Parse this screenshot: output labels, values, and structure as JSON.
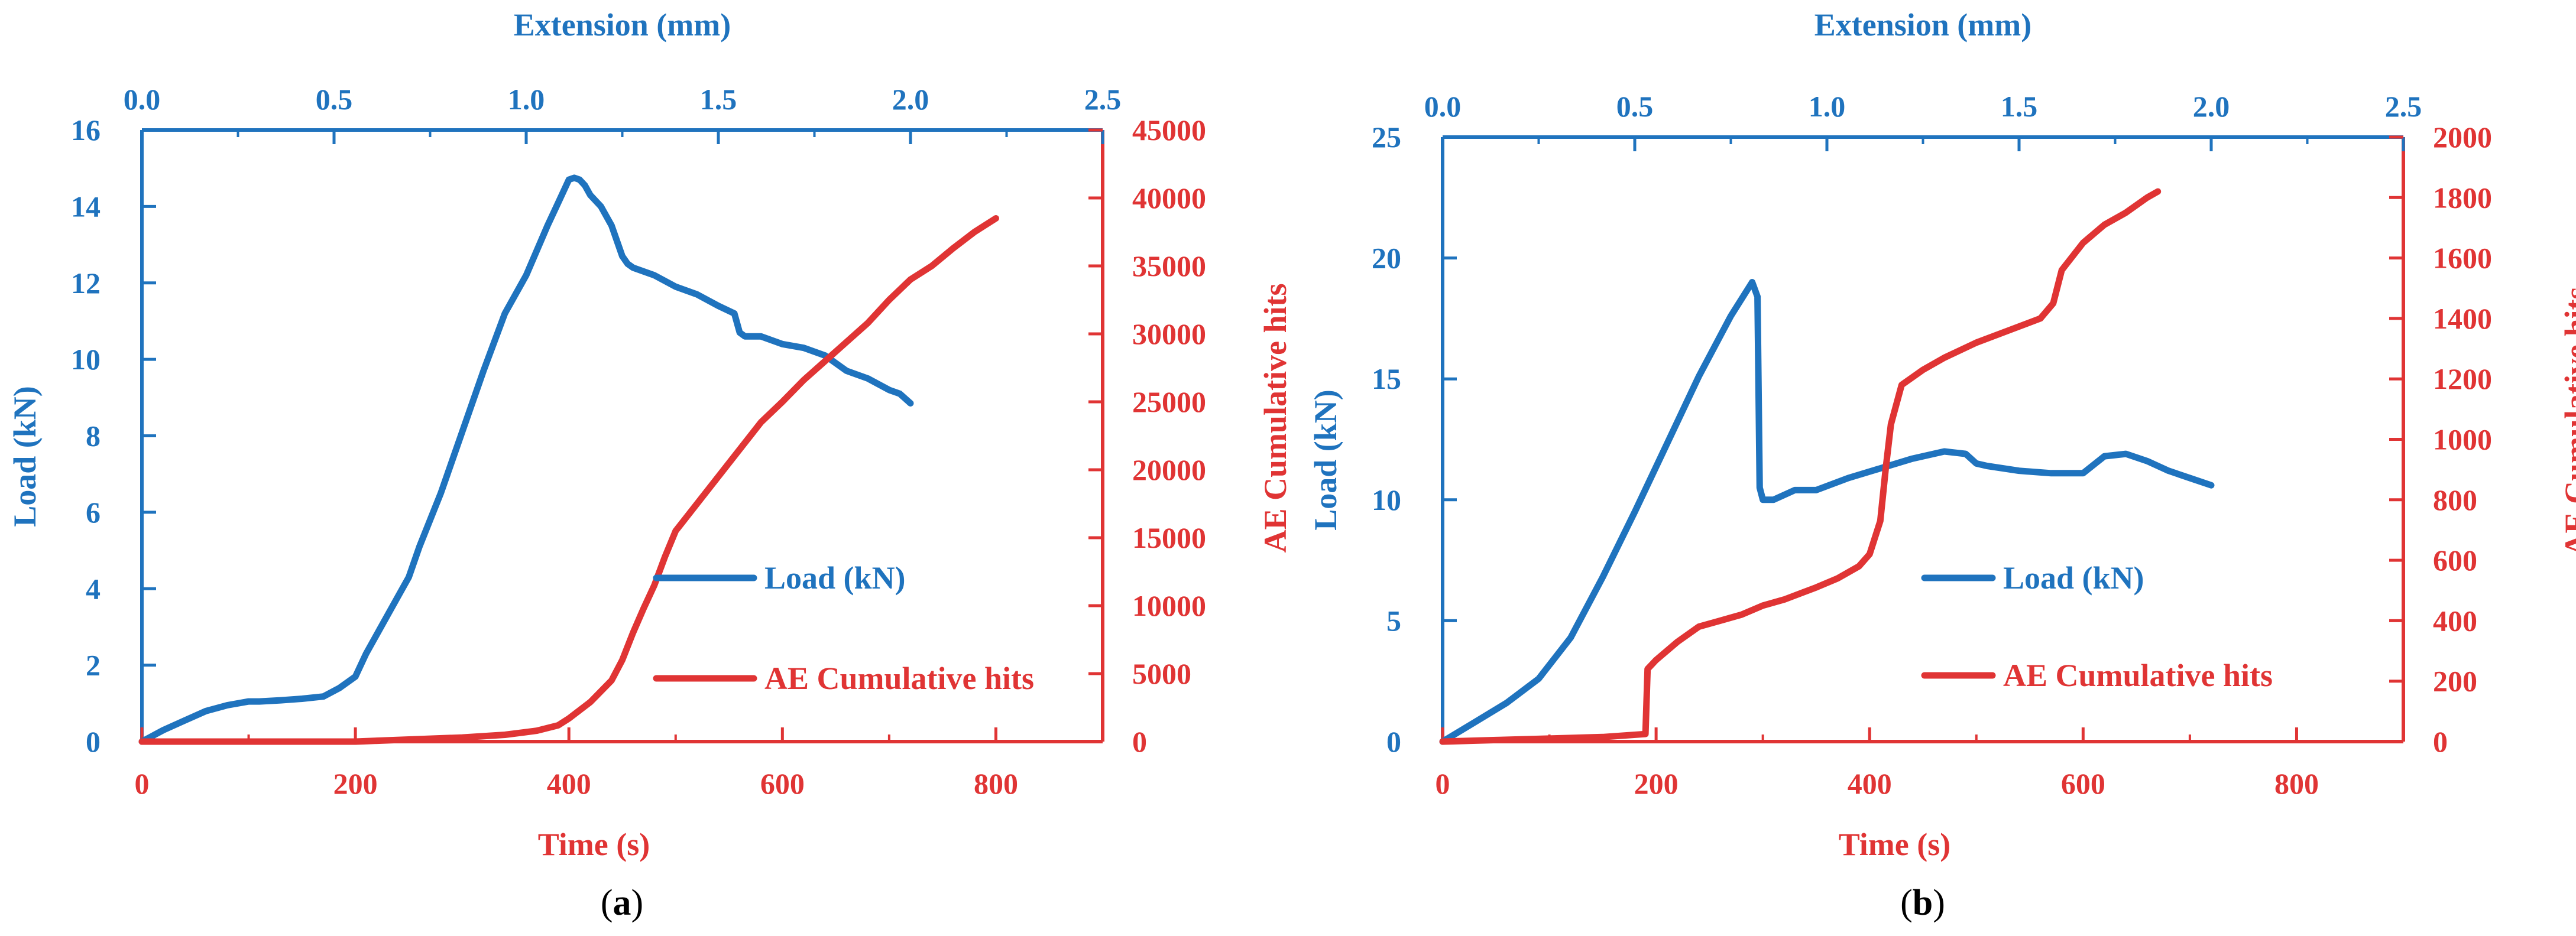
{
  "colors": {
    "load": "#1f73be",
    "ae": "#e03434"
  },
  "charts": [
    {
      "panel_label": "(a)",
      "panel_letter": "a",
      "top_axis_title": "Extension (mm)",
      "bottom_axis_title": "Time (s)",
      "left_axis_title": "Load (kN)",
      "right_axis_title": "AE Cumulative hits",
      "top_ticks": [
        "0.0",
        "0.5",
        "1.0",
        "1.5",
        "2.0",
        "2.5"
      ],
      "bottom_ticks": [
        "0",
        "200",
        "400",
        "600",
        "800"
      ],
      "left_ticks": [
        "0",
        "2",
        "4",
        "6",
        "8",
        "10",
        "12",
        "14",
        "16"
      ],
      "right_ticks": [
        "0",
        "5000",
        "10000",
        "15000",
        "20000",
        "25000",
        "30000",
        "35000",
        "40000",
        "45000"
      ],
      "legend": [
        "Load (kN)",
        "AE Cumulative hits"
      ]
    },
    {
      "panel_label": "(b)",
      "panel_letter": "b",
      "top_axis_title": "Extension (mm)",
      "bottom_axis_title": "Time (s)",
      "left_axis_title": "Load (kN)",
      "right_axis_title": "AE Cumulative hits",
      "top_ticks": [
        "0.0",
        "0.5",
        "1.0",
        "1.5",
        "2.0",
        "2.5"
      ],
      "bottom_ticks": [
        "0",
        "200",
        "400",
        "600",
        "800"
      ],
      "left_ticks": [
        "0",
        "5",
        "10",
        "15",
        "20",
        "25"
      ],
      "right_ticks": [
        "0",
        "200",
        "400",
        "600",
        "800",
        "1000",
        "1200",
        "1400",
        "1600",
        "1800",
        "2000"
      ],
      "legend": [
        "Load (kN)",
        "AE Cumulative hits"
      ]
    }
  ],
  "chart_data": [
    {
      "type": "line",
      "title": "(a)",
      "xlabel": "Time (s)",
      "x2label": "Extension (mm)",
      "ylabel": "Load (kN)",
      "y2label": "AE Cumulative hits",
      "xlim": [
        0,
        900
      ],
      "x2lim": [
        0,
        2.5
      ],
      "ylim": [
        0,
        16
      ],
      "y2lim": [
        0,
        45000
      ],
      "series": [
        {
          "name": "Load (kN)",
          "axis": "left",
          "x": [
            0,
            20,
            40,
            60,
            80,
            100,
            110,
            130,
            150,
            170,
            185,
            200,
            210,
            220,
            240,
            250,
            260,
            280,
            300,
            320,
            340,
            360,
            380,
            390,
            400,
            405,
            410,
            415,
            420,
            430,
            440,
            450,
            455,
            460,
            480,
            500,
            520,
            540,
            555,
            560,
            565,
            580,
            600,
            620,
            640,
            660,
            680,
            700,
            710,
            720
          ],
          "y": [
            0,
            0.3,
            0.55,
            0.8,
            0.95,
            1.05,
            1.05,
            1.08,
            1.12,
            1.18,
            1.4,
            1.7,
            2.3,
            2.8,
            3.8,
            4.3,
            5.1,
            6.5,
            8.1,
            9.7,
            11.2,
            12.2,
            13.5,
            14.1,
            14.7,
            14.75,
            14.7,
            14.55,
            14.3,
            14.0,
            13.5,
            12.7,
            12.5,
            12.4,
            12.2,
            11.9,
            11.7,
            11.4,
            11.2,
            10.7,
            10.6,
            10.6,
            10.4,
            10.3,
            10.1,
            9.7,
            9.5,
            9.2,
            9.1,
            8.85
          ]
        },
        {
          "name": "AE Cumulative hits",
          "axis": "right",
          "x": [
            0,
            100,
            200,
            250,
            300,
            340,
            370,
            390,
            400,
            420,
            440,
            450,
            460,
            470,
            480,
            490,
            500,
            520,
            540,
            560,
            580,
            600,
            620,
            640,
            660,
            680,
            700,
            720,
            740,
            760,
            780,
            800
          ],
          "y": [
            0,
            0,
            0,
            150,
            300,
            500,
            800,
            1200,
            1700,
            2900,
            4500,
            6000,
            8000,
            9800,
            11500,
            13600,
            15500,
            17500,
            19500,
            21500,
            23500,
            25000,
            26600,
            28000,
            29400,
            30800,
            32500,
            34000,
            35000,
            36300,
            37500,
            38500
          ]
        }
      ],
      "legend": [
        "Load (kN)",
        "AE Cumulative hits"
      ]
    },
    {
      "type": "line",
      "title": "(b)",
      "xlabel": "Time (s)",
      "x2label": "Extension (mm)",
      "ylabel": "Load (kN)",
      "y2label": "AE Cumulative hits",
      "xlim": [
        0,
        900
      ],
      "x2lim": [
        0,
        2.5
      ],
      "ylim": [
        0,
        25
      ],
      "y2lim": [
        0,
        2000
      ],
      "series": [
        {
          "name": "Load (kN)",
          "axis": "left",
          "x": [
            0,
            30,
            60,
            90,
            120,
            150,
            180,
            210,
            240,
            270,
            290,
            295,
            297,
            300,
            310,
            330,
            350,
            380,
            410,
            440,
            470,
            490,
            500,
            510,
            540,
            570,
            600,
            620,
            640,
            660,
            680,
            700,
            720
          ],
          "y": [
            0,
            0.8,
            1.6,
            2.6,
            4.3,
            6.8,
            9.5,
            12.3,
            15.1,
            17.6,
            19.0,
            18.4,
            10.5,
            10.0,
            10.0,
            10.4,
            10.4,
            10.9,
            11.3,
            11.7,
            12.0,
            11.9,
            11.5,
            11.4,
            11.2,
            11.1,
            11.1,
            11.8,
            11.9,
            11.6,
            11.2,
            10.9,
            10.6
          ]
        },
        {
          "name": "AE Cumulative hits",
          "axis": "right",
          "x": [
            0,
            50,
            100,
            150,
            190,
            192,
            200,
            220,
            240,
            260,
            280,
            300,
            320,
            350,
            370,
            390,
            400,
            410,
            415,
            420,
            430,
            450,
            470,
            500,
            530,
            560,
            572,
            580,
            600,
            620,
            640,
            660,
            670
          ],
          "y": [
            0,
            5,
            10,
            15,
            25,
            240,
            270,
            330,
            380,
            400,
            420,
            450,
            470,
            510,
            540,
            580,
            620,
            730,
            900,
            1050,
            1180,
            1230,
            1270,
            1320,
            1360,
            1400,
            1450,
            1560,
            1650,
            1710,
            1750,
            1800,
            1820
          ]
        }
      ],
      "legend": [
        "Load (kN)",
        "AE Cumulative hits"
      ]
    }
  ]
}
